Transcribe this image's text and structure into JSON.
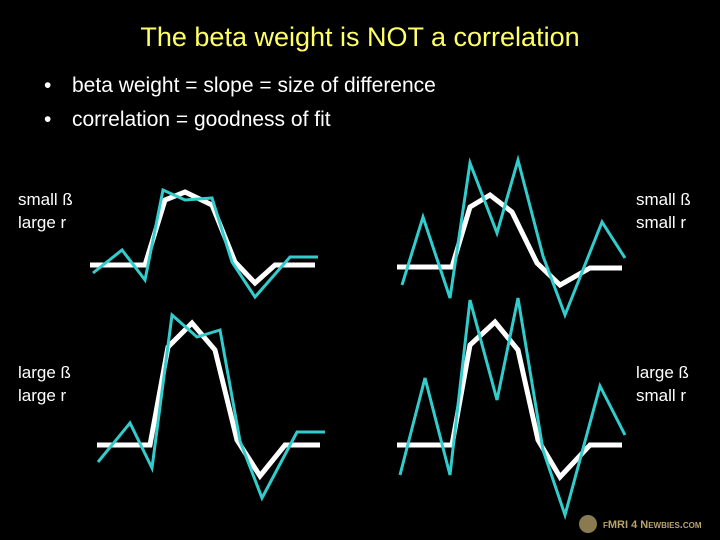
{
  "header": {
    "title": "The beta weight is NOT a correlation"
  },
  "bullets": [
    "beta weight = slope = size of difference",
    "correlation = goodness of fit"
  ],
  "panels": [
    {
      "lines": [
        "small ß",
        "large r"
      ]
    },
    {
      "lines": [
        "small ß",
        "small r"
      ]
    },
    {
      "lines": [
        "large ß",
        "large r"
      ]
    },
    {
      "lines": [
        "large ß",
        "small r"
      ]
    }
  ],
  "footer": {
    "logo": "fMRI 4 Newbies.com"
  }
}
